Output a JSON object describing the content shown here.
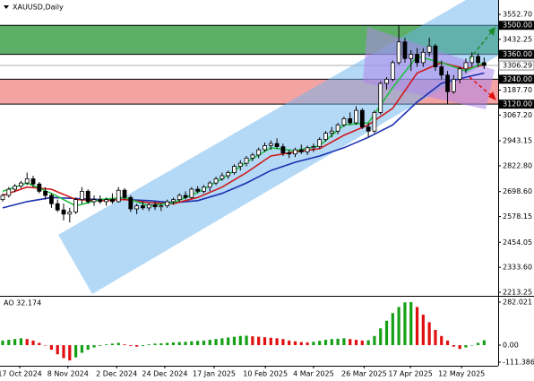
{
  "chart_data": {
    "type": "candlestick",
    "title": "XAUUSD,Daily",
    "open": [
      2660,
      2680,
      2710,
      2725,
      2740,
      2760,
      2735,
      2700,
      2680,
      2640,
      2610,
      2590,
      2600,
      2660,
      2700,
      2650,
      2660,
      2650,
      2660,
      2650,
      2705,
      2670,
      2615,
      2630,
      2620,
      2635,
      2625,
      2630,
      2650,
      2660,
      2680,
      2670,
      2710,
      2700,
      2720,
      2740,
      2760,
      2775,
      2790,
      2820,
      2835,
      2860,
      2875,
      2900,
      2920,
      2930,
      2915,
      2885,
      2880,
      2900,
      2890,
      2910,
      2915,
      2950,
      2980,
      2990,
      3020,
      3050,
      3030,
      3090,
      3010,
      2990,
      3080,
      3220,
      3240,
      3320,
      3420,
      3340,
      3360,
      3320,
      3370,
      3400,
      3300,
      3260,
      3180,
      3240,
      3290,
      3320,
      3350,
      3320
    ],
    "high": [
      2690,
      2720,
      2735,
      2750,
      2790,
      2775,
      2745,
      2720,
      2690,
      2660,
      2640,
      2620,
      2670,
      2720,
      2710,
      2680,
      2680,
      2670,
      2690,
      2720,
      2715,
      2680,
      2640,
      2650,
      2645,
      2650,
      2640,
      2660,
      2670,
      2690,
      2700,
      2720,
      2725,
      2730,
      2750,
      2770,
      2790,
      2800,
      2830,
      2850,
      2870,
      2885,
      2910,
      2935,
      2945,
      2955,
      2930,
      2900,
      2910,
      2925,
      2920,
      2930,
      2960,
      2990,
      3010,
      3030,
      3060,
      3080,
      3110,
      3100,
      3030,
      3090,
      3230,
      3250,
      3330,
      3500,
      3440,
      3380,
      3390,
      3390,
      3440,
      3410,
      3330,
      3280,
      3260,
      3300,
      3340,
      3370,
      3365,
      3345
    ],
    "low": [
      2650,
      2670,
      2695,
      2715,
      2730,
      2720,
      2690,
      2660,
      2620,
      2600,
      2560,
      2550,
      2590,
      2640,
      2640,
      2630,
      2640,
      2630,
      2640,
      2645,
      2660,
      2600,
      2590,
      2610,
      2605,
      2610,
      2605,
      2620,
      2635,
      2650,
      2660,
      2665,
      2690,
      2690,
      2700,
      2730,
      2750,
      2760,
      2780,
      2800,
      2820,
      2845,
      2860,
      2890,
      2900,
      2905,
      2870,
      2860,
      2865,
      2880,
      2875,
      2890,
      2905,
      2940,
      2960,
      2975,
      3010,
      3020,
      3020,
      3000,
      2960,
      2980,
      3070,
      3190,
      3230,
      3310,
      3320,
      3280,
      3300,
      3300,
      3350,
      3280,
      3240,
      3120,
      3170,
      3220,
      3270,
      3300,
      3300,
      3290
    ],
    "close": [
      2680,
      2710,
      2725,
      2740,
      2760,
      2735,
      2700,
      2680,
      2640,
      2610,
      2590,
      2600,
      2660,
      2700,
      2650,
      2660,
      2650,
      2660,
      2650,
      2705,
      2670,
      2615,
      2630,
      2620,
      2635,
      2625,
      2630,
      2650,
      2660,
      2680,
      2670,
      2710,
      2700,
      2720,
      2740,
      2760,
      2775,
      2790,
      2820,
      2835,
      2860,
      2875,
      2900,
      2920,
      2930,
      2915,
      2885,
      2880,
      2900,
      2890,
      2910,
      2915,
      2950,
      2980,
      2990,
      3020,
      3050,
      3030,
      3090,
      3010,
      2990,
      3080,
      3220,
      3240,
      3320,
      3420,
      3340,
      3360,
      3320,
      3370,
      3400,
      3300,
      3260,
      3180,
      3240,
      3290,
      3320,
      3350,
      3320,
      3306.29
    ],
    "xlim": [
      -0.44,
      81.3
    ],
    "xticks": [
      {
        "value": 2.8,
        "label": "17 Oct 2024"
      },
      {
        "value": 10.7,
        "label": "8 Nov 2024"
      },
      {
        "value": 18.7,
        "label": "2 Dec 2024"
      },
      {
        "value": 26.6,
        "label": "24 Dec 2024"
      },
      {
        "value": 34.7,
        "label": "17 Jan 2025"
      },
      {
        "value": 43.1,
        "label": "10 Feb 2025"
      },
      {
        "value": 51,
        "label": "4 Mar 2025"
      },
      {
        "value": 59.3,
        "label": "26 Mar 2025"
      },
      {
        "value": 66.9,
        "label": "17 Apr 2025"
      },
      {
        "value": 75.3,
        "label": "12 May 2025"
      }
    ],
    "ylim": [
      2196,
      3622
    ],
    "yticks": [
      {
        "value": 3552.7,
        "label": "3552.70"
      },
      {
        "value": 3432.25,
        "label": "3432.25"
      },
      {
        "value": 3187.7,
        "label": "3187.70"
      },
      {
        "value": 3067.2,
        "label": "3067.20"
      },
      {
        "value": 2943.15,
        "label": "2943.15"
      },
      {
        "value": 2822.8,
        "label": "2822.80"
      },
      {
        "value": 2698.6,
        "label": "2698.60"
      },
      {
        "value": 2578.15,
        "label": "2578.15"
      },
      {
        "value": 2454.05,
        "label": "2454.05"
      },
      {
        "value": 2333.6,
        "label": "2333.60"
      },
      {
        "value": 2213.25,
        "label": "2213.25"
      }
    ],
    "levels": [
      {
        "value": 3500,
        "label": "3500.00"
      },
      {
        "value": 3360,
        "label": "3360.00"
      },
      {
        "value": 3240,
        "label": "3240.00"
      },
      {
        "value": 3120,
        "label": "3120.00"
      }
    ],
    "zones": [
      {
        "from": 3360,
        "to": 3500,
        "color": "#5daf68"
      },
      {
        "from": 3120,
        "to": 3240,
        "color": "#f4a3a3"
      }
    ],
    "current_price": {
      "value": 3306.29,
      "label": "3306.29"
    },
    "ma_series": [
      {
        "color": "#1a2fb0",
        "x": [
          0,
          4,
          8,
          12,
          16,
          20,
          24,
          28,
          32,
          36,
          40,
          44,
          48,
          52,
          56,
          60,
          64,
          68,
          72,
          76,
          79
        ],
        "values": [
          2620,
          2650,
          2670,
          2665,
          2660,
          2660,
          2655,
          2645,
          2655,
          2690,
          2740,
          2800,
          2840,
          2870,
          2910,
          2960,
          3020,
          3130,
          3220,
          3250,
          3270
        ]
      },
      {
        "color": "#d01818",
        "x": [
          0,
          4,
          8,
          12,
          16,
          20,
          24,
          28,
          32,
          36,
          40,
          44,
          48,
          52,
          56,
          60,
          64,
          68,
          72,
          76,
          79
        ],
        "values": [
          2680,
          2720,
          2710,
          2660,
          2655,
          2660,
          2645,
          2640,
          2670,
          2720,
          2790,
          2870,
          2890,
          2905,
          2970,
          3020,
          3100,
          3270,
          3320,
          3290,
          3310
        ]
      },
      {
        "color": "#20c040",
        "x": [
          0,
          4,
          8,
          12,
          16,
          20,
          24,
          28,
          32,
          36,
          40,
          44,
          48,
          52,
          56,
          60,
          64,
          68,
          72,
          76,
          79
        ],
        "values": [
          2700,
          2740,
          2690,
          2630,
          2660,
          2670,
          2630,
          2645,
          2695,
          2760,
          2840,
          2910,
          2895,
          2920,
          3020,
          3030,
          3200,
          3350,
          3320,
          3280,
          3320
        ]
      }
    ],
    "ao": {
      "label": "AO 32.174",
      "up_color": "#16a016",
      "down_color": "#e01010",
      "values": [
        30,
        35,
        40,
        45,
        40,
        30,
        15,
        0,
        -30,
        -60,
        -85,
        -100,
        -80,
        -50,
        -30,
        -15,
        -5,
        5,
        10,
        15,
        5,
        -5,
        -10,
        -5,
        5,
        10,
        12,
        15,
        18,
        20,
        22,
        25,
        28,
        30,
        35,
        40,
        45,
        50,
        55,
        60,
        62,
        58,
        55,
        52,
        48,
        45,
        40,
        30,
        25,
        20,
        18,
        22,
        28,
        35,
        40,
        42,
        45,
        40,
        35,
        30,
        32,
        60,
        110,
        160,
        210,
        250,
        280,
        282.021,
        250,
        200,
        150,
        100,
        60,
        30,
        -10,
        -25,
        -15,
        0,
        15,
        32.174
      ],
      "ylim": [
        -135,
        317
      ],
      "yticks": [
        {
          "value": 282.021,
          "label": "282.021"
        },
        {
          "value": 0,
          "label": "0.00"
        },
        {
          "value": -111.386,
          "label": "-111.386"
        }
      ]
    }
  }
}
